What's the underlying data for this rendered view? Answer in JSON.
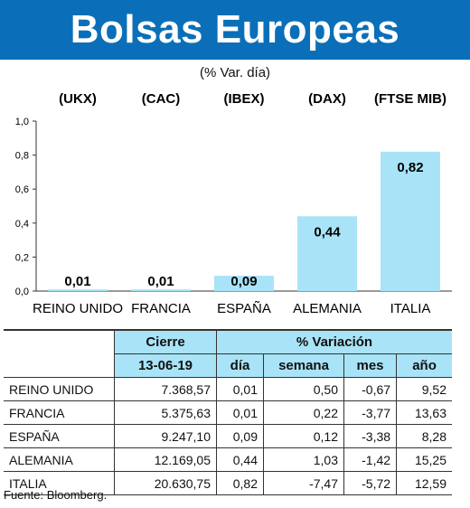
{
  "title": "Bolsas Europeas",
  "subtitle": "(% Var. día)",
  "colors": {
    "title_bg": "#0a6fb8",
    "bar": "#a9e3f7",
    "table_header_bg": "#a9e3f7",
    "border": "#333333"
  },
  "chart_data": {
    "type": "bar",
    "indices": [
      "(UKX)",
      "(CAC)",
      "(IBEX)",
      "(DAX)",
      "(FTSE MIB)"
    ],
    "categories": [
      "REINO UNIDO",
      "FRANCIA",
      "ESPAÑA",
      "ALEMANIA",
      "ITALIA"
    ],
    "values": [
      0.01,
      0.01,
      0.09,
      0.44,
      0.82
    ],
    "value_labels": [
      "0,01",
      "0,01",
      "0,09",
      "0,44",
      "0,82"
    ],
    "yticks": [
      "0,0",
      "0,2",
      "0,4",
      "0,6",
      "0,8",
      "1,0"
    ],
    "ylim": [
      0,
      1.0
    ]
  },
  "table": {
    "header_cierre": "Cierre",
    "header_date": "13-06-19",
    "header_variacion": "% Variación",
    "cols": [
      "día",
      "semana",
      "mes",
      "año"
    ],
    "rows": [
      {
        "name": "REINO UNIDO",
        "cierre": "7.368,57",
        "dia": "0,01",
        "semana": "0,50",
        "mes": "-0,67",
        "anio": "9,52"
      },
      {
        "name": "FRANCIA",
        "cierre": "5.375,63",
        "dia": "0,01",
        "semana": "0,22",
        "mes": "-3,77",
        "anio": "13,63"
      },
      {
        "name": "ESPAÑA",
        "cierre": "9.247,10",
        "dia": "0,09",
        "semana": "0,12",
        "mes": "-3,38",
        "anio": "8,28"
      },
      {
        "name": "ALEMANIA",
        "cierre": "12.169,05",
        "dia": "0,44",
        "semana": "1,03",
        "mes": "-1,42",
        "anio": "15,25"
      },
      {
        "name": "ITALIA",
        "cierre": "20.630,75",
        "dia": "0,82",
        "semana": "-7,47",
        "mes": "-5,72",
        "anio": "12,59"
      }
    ]
  },
  "source": "Fuente: Bloomberg."
}
